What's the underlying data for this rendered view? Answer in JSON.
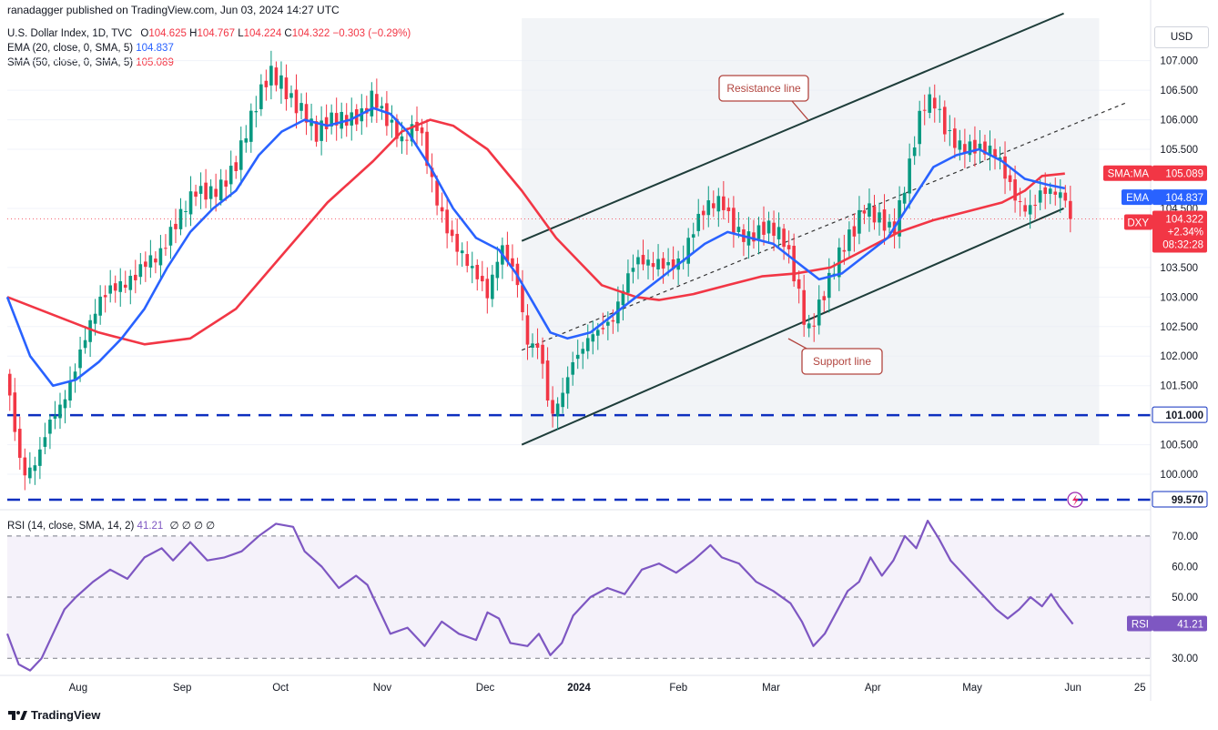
{
  "header": {
    "publisher": "ranadagger published on TradingView.com, Jun 03, 2024 14:27 UTC",
    "symbol": "U.S. Dollar Index, 1D, TVC",
    "ohlc": {
      "o_label": "O",
      "o": "104.625",
      "h_label": "H",
      "h": "104.767",
      "l_label": "L",
      "l": "104.224",
      "c_label": "C",
      "c": "104.322",
      "change": "−0.303 (−0.29%)"
    },
    "ema_legend": "EMA (20, close, 0, SMA, 5)",
    "ema_value": "104.837",
    "sma_legend": "SMA (50, close, 0, SMA, 5)",
    "sma_value": "105.089",
    "rsi_legend": "RSI (14, close, SMA, 14, 2)",
    "rsi_value": "41.21",
    "rsi_extra": "∅ ∅ ∅ ∅",
    "currency_button": "USD"
  },
  "footer": {
    "brand": "TradingView"
  },
  "colors": {
    "up": "#089981",
    "down": "#f23645",
    "ema": "#2962ff",
    "sma": "#f23645",
    "rsi": "#7e57c2",
    "annotation": "#b2453f",
    "support_resistance": "#0d2fbf",
    "channel": "#1e3d3a"
  },
  "icons": [
    "tradingview-logo-icon",
    "lightning-icon"
  ],
  "chart_data": {
    "type": "candlestick",
    "title": "U.S. Dollar Index, 1D, TVC",
    "price_axis": {
      "range": [
        99.4,
        107.75
      ],
      "ticks": [
        "107.000",
        "106.500",
        "106.000",
        "105.500",
        "104.500",
        "103.500",
        "103.000",
        "102.500",
        "102.000",
        "101.500",
        "100.500",
        "100.000"
      ]
    },
    "time_axis": {
      "ticks": [
        "Aug",
        "Sep",
        "Oct",
        "Nov",
        "Dec",
        "2024",
        "Feb",
        "Mar",
        "Apr",
        "May",
        "Jun",
        "25"
      ]
    },
    "price_labels": [
      {
        "name": "SMA:MA",
        "value": "105.089",
        "color": "#f23645"
      },
      {
        "name": "EMA",
        "value": "104.837",
        "color": "#2962ff"
      },
      {
        "name": "DXY",
        "value": "104.322",
        "sub1": "+2.34%",
        "sub2": "08:32:28",
        "color": "#f23645"
      },
      {
        "name": "",
        "value": "101.000",
        "color": "#ffffff"
      },
      {
        "name": "",
        "value": "99.570",
        "color": "#ffffff"
      }
    ],
    "horizontal_levels": [
      101.0,
      99.57
    ],
    "channel": {
      "support": [
        {
          "t": 0.45,
          "p": 100.5
        },
        {
          "t": 0.924,
          "p": 104.5
        }
      ],
      "resistance": [
        {
          "t": 0.45,
          "p": 103.95
        },
        {
          "t": 0.924,
          "p": 107.8
        }
      ],
      "midline": [
        {
          "t": 0.45,
          "p": 102.1
        },
        {
          "t": 0.98,
          "p": 106.3
        }
      ]
    },
    "annotations": [
      {
        "text": "Resistance line",
        "target": "resistance channel line"
      },
      {
        "text": "Support line",
        "target": "support channel line"
      }
    ],
    "price_path_keypoints": [
      [
        0,
        101.7
      ],
      [
        0.006,
        100.7
      ],
      [
        0.014,
        99.75
      ],
      [
        0.025,
        100.0
      ],
      [
        0.038,
        101.0
      ],
      [
        0.05,
        101.5
      ],
      [
        0.065,
        102.2
      ],
      [
        0.08,
        102.7
      ],
      [
        0.1,
        103.2
      ],
      [
        0.12,
        103.8
      ],
      [
        0.135,
        103.7
      ],
      [
        0.15,
        104.1
      ],
      [
        0.165,
        104.8
      ],
      [
        0.18,
        105.0
      ],
      [
        0.2,
        105.2
      ],
      [
        0.215,
        105.9
      ],
      [
        0.23,
        106.8
      ],
      [
        0.24,
        106.8
      ],
      [
        0.26,
        106.2
      ],
      [
        0.27,
        105.6
      ],
      [
        0.29,
        105.9
      ],
      [
        0.31,
        106.3
      ],
      [
        0.32,
        106.6
      ],
      [
        0.33,
        106.0
      ],
      [
        0.345,
        105.4
      ],
      [
        0.36,
        105.9
      ],
      [
        0.375,
        104.9
      ],
      [
        0.39,
        104.0
      ],
      [
        0.405,
        103.3
      ],
      [
        0.42,
        102.9
      ],
      [
        0.432,
        104.0
      ],
      [
        0.445,
        103.6
      ],
      [
        0.455,
        102.3
      ],
      [
        0.466,
        102.0
      ],
      [
        0.475,
        100.7
      ],
      [
        0.485,
        101.2
      ],
      [
        0.495,
        102.0
      ],
      [
        0.51,
        102.6
      ],
      [
        0.53,
        102.5
      ],
      [
        0.55,
        103.5
      ],
      [
        0.57,
        103.8
      ],
      [
        0.59,
        103.6
      ],
      [
        0.61,
        104.3
      ],
      [
        0.625,
        104.7
      ],
      [
        0.635,
        104.4
      ],
      [
        0.65,
        104.1
      ],
      [
        0.665,
        104.0
      ],
      [
        0.68,
        103.8
      ],
      [
        0.69,
        103.3
      ],
      [
        0.7,
        102.6
      ],
      [
        0.712,
        103.1
      ],
      [
        0.725,
        103.5
      ],
      [
        0.74,
        103.9
      ],
      [
        0.75,
        104.5
      ],
      [
        0.765,
        104.5
      ],
      [
        0.775,
        104.3
      ],
      [
        0.79,
        105.2
      ],
      [
        0.8,
        106.0
      ],
      [
        0.81,
        106.2
      ],
      [
        0.82,
        105.9
      ],
      [
        0.83,
        105.8
      ],
      [
        0.842,
        105.7
      ],
      [
        0.855,
        105.4
      ],
      [
        0.865,
        105.2
      ],
      [
        0.875,
        104.8
      ],
      [
        0.885,
        104.6
      ],
      [
        0.895,
        104.7
      ],
      [
        0.905,
        105.0
      ],
      [
        0.915,
        104.8
      ],
      [
        0.925,
        104.5
      ],
      [
        0.932,
        104.32
      ]
    ],
    "ema_keypoints": [
      [
        0,
        103.0
      ],
      [
        0.02,
        102.0
      ],
      [
        0.04,
        101.5
      ],
      [
        0.06,
        101.6
      ],
      [
        0.08,
        101.9
      ],
      [
        0.1,
        102.3
      ],
      [
        0.12,
        102.8
      ],
      [
        0.14,
        103.5
      ],
      [
        0.16,
        104.1
      ],
      [
        0.18,
        104.5
      ],
      [
        0.2,
        104.8
      ],
      [
        0.22,
        105.4
      ],
      [
        0.24,
        105.8
      ],
      [
        0.26,
        106.0
      ],
      [
        0.28,
        105.9
      ],
      [
        0.3,
        106.0
      ],
      [
        0.32,
        106.2
      ],
      [
        0.335,
        106.1
      ],
      [
        0.35,
        105.8
      ],
      [
        0.37,
        105.2
      ],
      [
        0.39,
        104.5
      ],
      [
        0.41,
        104.0
      ],
      [
        0.43,
        103.8
      ],
      [
        0.445,
        103.4
      ],
      [
        0.46,
        102.9
      ],
      [
        0.475,
        102.4
      ],
      [
        0.49,
        102.3
      ],
      [
        0.51,
        102.4
      ],
      [
        0.53,
        102.7
      ],
      [
        0.55,
        103.0
      ],
      [
        0.57,
        103.3
      ],
      [
        0.59,
        103.6
      ],
      [
        0.61,
        103.9
      ],
      [
        0.63,
        104.1
      ],
      [
        0.65,
        104.0
      ],
      [
        0.67,
        103.9
      ],
      [
        0.69,
        103.6
      ],
      [
        0.71,
        103.3
      ],
      [
        0.73,
        103.4
      ],
      [
        0.75,
        103.7
      ],
      [
        0.77,
        104.0
      ],
      [
        0.79,
        104.6
      ],
      [
        0.81,
        105.2
      ],
      [
        0.83,
        105.4
      ],
      [
        0.85,
        105.5
      ],
      [
        0.87,
        105.3
      ],
      [
        0.89,
        105.0
      ],
      [
        0.91,
        104.9
      ],
      [
        0.925,
        104.84
      ]
    ],
    "sma_keypoints": [
      [
        0,
        103.0
      ],
      [
        0.04,
        102.7
      ],
      [
        0.08,
        102.4
      ],
      [
        0.12,
        102.2
      ],
      [
        0.16,
        102.3
      ],
      [
        0.2,
        102.8
      ],
      [
        0.24,
        103.7
      ],
      [
        0.28,
        104.6
      ],
      [
        0.32,
        105.3
      ],
      [
        0.345,
        105.8
      ],
      [
        0.37,
        106.0
      ],
      [
        0.39,
        105.9
      ],
      [
        0.42,
        105.5
      ],
      [
        0.45,
        104.8
      ],
      [
        0.48,
        104.0
      ],
      [
        0.5,
        103.6
      ],
      [
        0.52,
        103.2
      ],
      [
        0.55,
        103.0
      ],
      [
        0.57,
        102.95
      ],
      [
        0.6,
        103.05
      ],
      [
        0.63,
        103.2
      ],
      [
        0.66,
        103.35
      ],
      [
        0.69,
        103.4
      ],
      [
        0.72,
        103.5
      ],
      [
        0.75,
        103.8
      ],
      [
        0.78,
        104.1
      ],
      [
        0.81,
        104.3
      ],
      [
        0.84,
        104.45
      ],
      [
        0.87,
        104.6
      ],
      [
        0.89,
        104.8
      ],
      [
        0.905,
        105.05
      ],
      [
        0.925,
        105.09
      ]
    ],
    "rsi": {
      "title": "RSI (14, close, SMA, 14, 2)",
      "range": [
        25,
        78
      ],
      "ticks": [
        "70.00",
        "60.00",
        "50.00",
        "30.00"
      ],
      "levels": [
        70,
        50,
        30
      ],
      "current": "41.21",
      "keypoints": [
        [
          0,
          38
        ],
        [
          0.01,
          28
        ],
        [
          0.02,
          26
        ],
        [
          0.03,
          30
        ],
        [
          0.04,
          38
        ],
        [
          0.05,
          46
        ],
        [
          0.06,
          50
        ],
        [
          0.075,
          55
        ],
        [
          0.09,
          59
        ],
        [
          0.105,
          56
        ],
        [
          0.12,
          63
        ],
        [
          0.135,
          66
        ],
        [
          0.145,
          62
        ],
        [
          0.16,
          68
        ],
        [
          0.175,
          62
        ],
        [
          0.19,
          63
        ],
        [
          0.205,
          65
        ],
        [
          0.22,
          70
        ],
        [
          0.235,
          74
        ],
        [
          0.25,
          73
        ],
        [
          0.26,
          65
        ],
        [
          0.275,
          60
        ],
        [
          0.29,
          53
        ],
        [
          0.305,
          57
        ],
        [
          0.315,
          54
        ],
        [
          0.325,
          46
        ],
        [
          0.335,
          38
        ],
        [
          0.35,
          40
        ],
        [
          0.365,
          34
        ],
        [
          0.38,
          42
        ],
        [
          0.395,
          38
        ],
        [
          0.41,
          36
        ],
        [
          0.42,
          45
        ],
        [
          0.43,
          43
        ],
        [
          0.44,
          35
        ],
        [
          0.455,
          34
        ],
        [
          0.465,
          38
        ],
        [
          0.475,
          31
        ],
        [
          0.485,
          35
        ],
        [
          0.495,
          44
        ],
        [
          0.51,
          50
        ],
        [
          0.525,
          53
        ],
        [
          0.54,
          51
        ],
        [
          0.555,
          59
        ],
        [
          0.57,
          61
        ],
        [
          0.585,
          58
        ],
        [
          0.6,
          62
        ],
        [
          0.615,
          67
        ],
        [
          0.625,
          63
        ],
        [
          0.64,
          61
        ],
        [
          0.655,
          55
        ],
        [
          0.67,
          52
        ],
        [
          0.685,
          48
        ],
        [
          0.695,
          42
        ],
        [
          0.705,
          34
        ],
        [
          0.715,
          38
        ],
        [
          0.725,
          45
        ],
        [
          0.735,
          52
        ],
        [
          0.745,
          55
        ],
        [
          0.755,
          63
        ],
        [
          0.765,
          57
        ],
        [
          0.775,
          62
        ],
        [
          0.785,
          70
        ],
        [
          0.795,
          66
        ],
        [
          0.805,
          75
        ],
        [
          0.815,
          69
        ],
        [
          0.825,
          62
        ],
        [
          0.835,
          58
        ],
        [
          0.845,
          54
        ],
        [
          0.855,
          50
        ],
        [
          0.865,
          46
        ],
        [
          0.875,
          43
        ],
        [
          0.885,
          46
        ],
        [
          0.895,
          50
        ],
        [
          0.905,
          47
        ],
        [
          0.913,
          51
        ],
        [
          0.92,
          47
        ],
        [
          0.932,
          41.21
        ]
      ]
    }
  }
}
